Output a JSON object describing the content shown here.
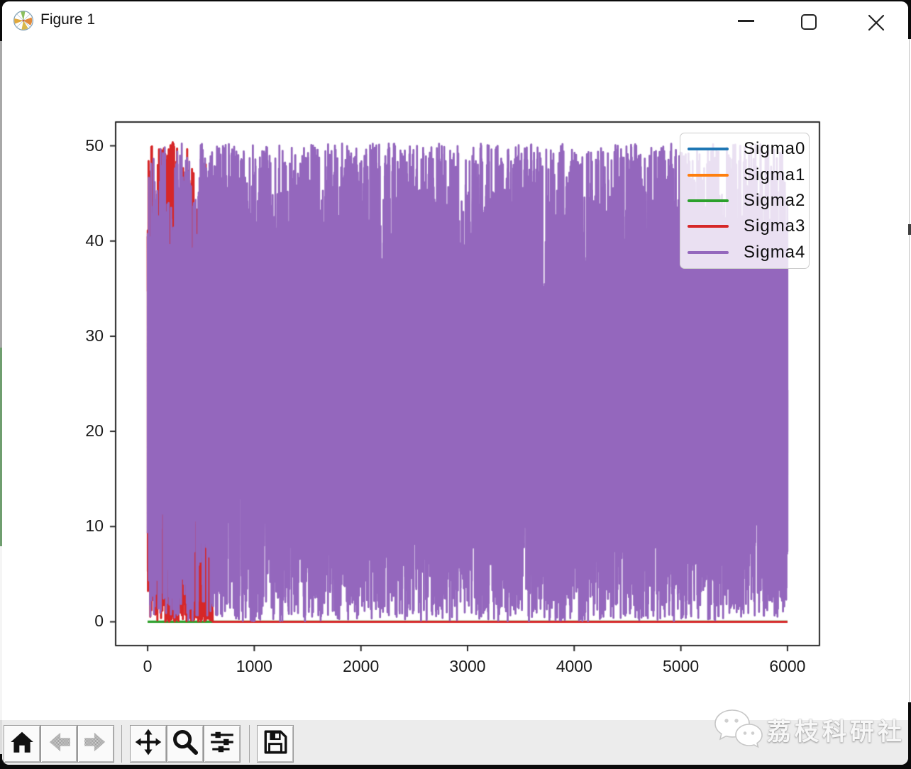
{
  "window": {
    "title": "Figure 1",
    "controls": [
      {
        "name": "minimize"
      },
      {
        "name": "maximize"
      },
      {
        "name": "close"
      }
    ]
  },
  "chart_data": {
    "type": "line",
    "title": "",
    "xlabel": "",
    "ylabel": "",
    "x_range": [
      0,
      6000
    ],
    "xlim": [
      -300,
      6300
    ],
    "ylim": [
      -2.5,
      52.5
    ],
    "xticks": [
      0,
      1000,
      2000,
      3000,
      4000,
      5000,
      6000
    ],
    "yticks": [
      0,
      10,
      20,
      30,
      40,
      50
    ],
    "grid": false,
    "legend_position": "upper right",
    "series": [
      {
        "name": "Sigma0",
        "color": "#1f77b4",
        "pattern": "constant",
        "value": 0,
        "linewidth": 3
      },
      {
        "name": "Sigma1",
        "color": "#ff7f0e",
        "pattern": "constant",
        "value": 0,
        "linewidth": 3
      },
      {
        "name": "Sigma2",
        "color": "#2ca02c",
        "pattern": "constant",
        "value": 0,
        "linewidth": 3.2
      },
      {
        "name": "Sigma3",
        "color": "#d62728",
        "pattern": "bimodal_bursts",
        "n": 9000,
        "seed": 99,
        "linewidth": 3,
        "bursts": [
          [
            0,
            165,
            0,
            50.3,
            0,
            50.3,
            1
          ],
          [
            165,
            255,
            42,
            50.5,
            0,
            1.2,
            0.62
          ],
          [
            255,
            400,
            0,
            7,
            7,
            50,
            0.45
          ],
          [
            400,
            490,
            5,
            48,
            0,
            5,
            0.55
          ],
          [
            490,
            610,
            0,
            2.2,
            2.2,
            50,
            0.62
          ]
        ]
      },
      {
        "name": "Sigma4",
        "color": "#9467bd",
        "pattern": "uniform",
        "n": 9000,
        "seed": 1337,
        "min": 0.05,
        "max": 50.25,
        "linewidth": 2.8,
        "caps": [
          [
            165,
            255,
            44
          ],
          [
            400,
            490,
            47
          ],
          [
            3705,
            3730,
            36.5
          ]
        ]
      }
    ]
  },
  "toolbar": {
    "buttons": [
      {
        "name": "home",
        "icon": "home-icon",
        "disabled": false
      },
      {
        "name": "back",
        "icon": "back-arrow-icon",
        "disabled": true
      },
      {
        "name": "forward",
        "icon": "forward-arrow-icon",
        "disabled": true
      },
      {
        "name": "pan",
        "icon": "pan-arrows-icon",
        "disabled": false
      },
      {
        "name": "zoom-to-rect",
        "icon": "magnifier-icon",
        "disabled": false
      },
      {
        "name": "configure-subplots",
        "icon": "sliders-icon",
        "disabled": false
      },
      {
        "name": "save",
        "icon": "save-icon",
        "disabled": false
      }
    ]
  },
  "watermark": {
    "text": "荔枝科研社",
    "icon": "wechat-bubbles-icon"
  },
  "colors": {
    "toolbar_band": "#ececec",
    "frame": "#262626",
    "window_bg": "#ffffff"
  }
}
